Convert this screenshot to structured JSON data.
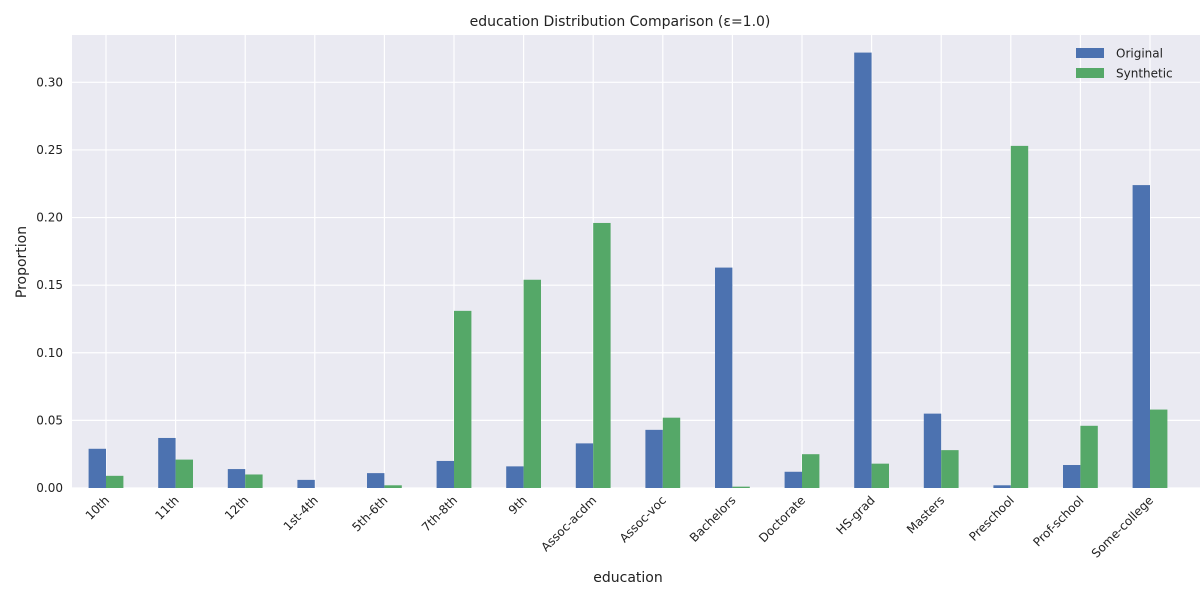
{
  "chart_data": {
    "type": "bar",
    "title": "education Distribution Comparison (ε=1.0)",
    "xlabel": "education",
    "ylabel": "Proportion",
    "ylim": [
      0,
      0.335
    ],
    "yticks": [
      "0.00",
      "0.05",
      "0.10",
      "0.15",
      "0.20",
      "0.25",
      "0.30"
    ],
    "ytick_values": [
      0,
      0.05,
      0.1,
      0.15,
      0.2,
      0.25,
      0.3
    ],
    "grid": true,
    "legend_position": "top-right",
    "categories": [
      "10th",
      "11th",
      "12th",
      "1st-4th",
      "5th-6th",
      "7th-8th",
      "9th",
      "Assoc-acdm",
      "Assoc-voc",
      "Bachelors",
      "Doctorate",
      "HS-grad",
      "Masters",
      "Preschool",
      "Prof-school",
      "Some-college"
    ],
    "series": [
      {
        "name": "Original",
        "color": "#4c72b0",
        "values": [
          0.029,
          0.037,
          0.014,
          0.006,
          0.011,
          0.02,
          0.016,
          0.033,
          0.043,
          0.163,
          0.012,
          0.322,
          0.055,
          0.002,
          0.017,
          0.224
        ]
      },
      {
        "name": "Synthetic",
        "color": "#55a868",
        "values": [
          0.009,
          0.021,
          0.01,
          0.0,
          0.002,
          0.131,
          0.154,
          0.196,
          0.052,
          0.001,
          0.025,
          0.018,
          0.028,
          0.253,
          0.046,
          0.058
        ]
      }
    ]
  }
}
